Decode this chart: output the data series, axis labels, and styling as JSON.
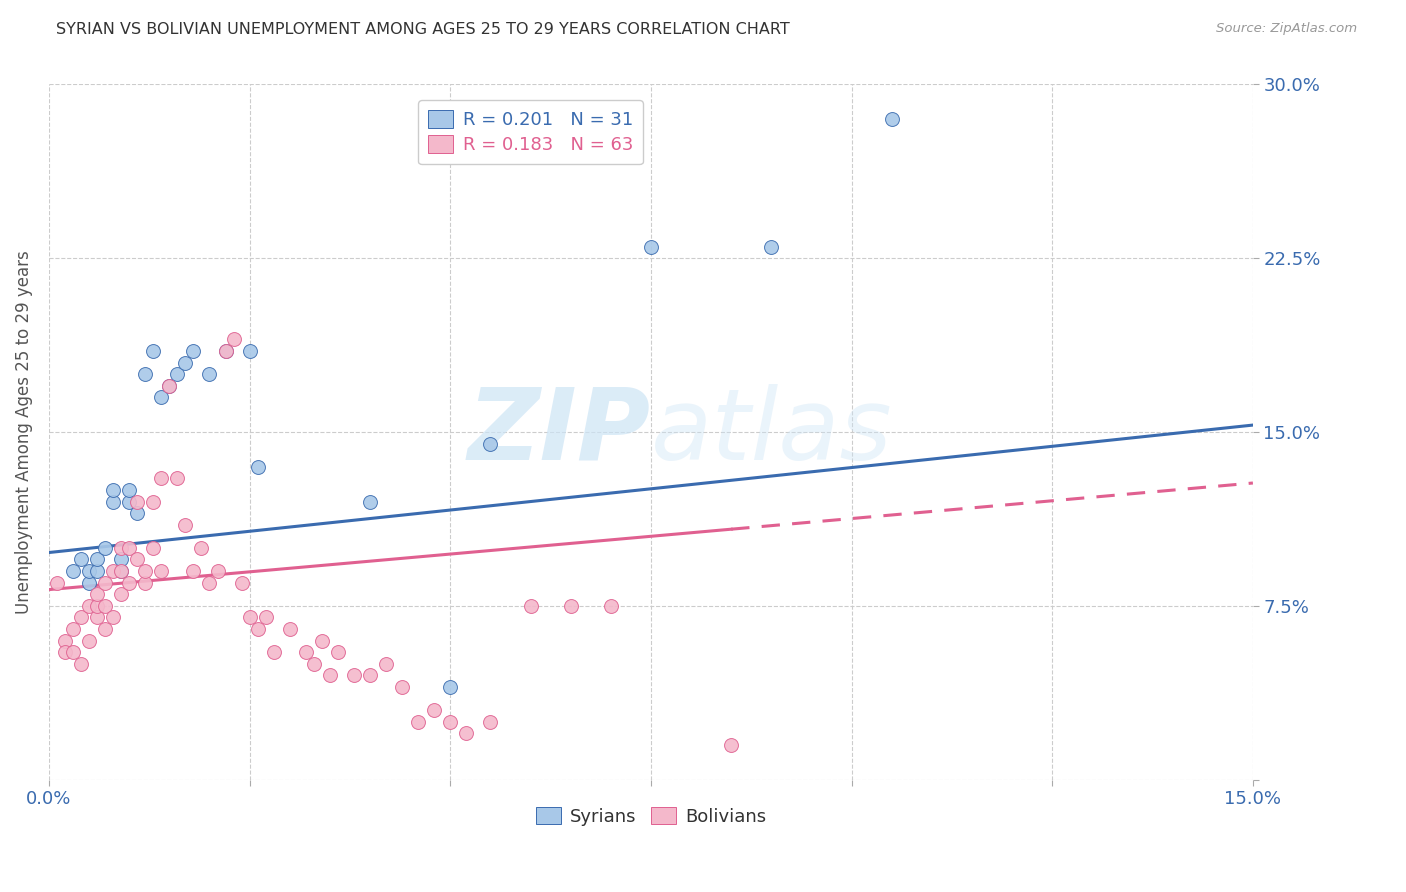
{
  "title": "SYRIAN VS BOLIVIAN UNEMPLOYMENT AMONG AGES 25 TO 29 YEARS CORRELATION CHART",
  "source": "Source: ZipAtlas.com",
  "ylabel": "Unemployment Among Ages 25 to 29 years",
  "xlim": [
    0,
    0.15
  ],
  "ylim": [
    0,
    0.3
  ],
  "xticks": [
    0.0,
    0.025,
    0.05,
    0.075,
    0.1,
    0.125,
    0.15
  ],
  "xticklabels": [
    "0.0%",
    "",
    "",
    "",
    "",
    "",
    "15.0%"
  ],
  "yticks": [
    0.0,
    0.075,
    0.15,
    0.225,
    0.3
  ],
  "yticklabels": [
    "",
    "7.5%",
    "15.0%",
    "22.5%",
    "30.0%"
  ],
  "syrians_color": "#a8c8e8",
  "bolivians_color": "#f4b8cb",
  "trend_syrian_color": "#3a6baf",
  "trend_bolivian_color": "#e06090",
  "watermark_color": "#cce4f5",
  "legend_syrian_R": "R = 0.201",
  "legend_syrian_N": "N = 31",
  "legend_bolivian_R": "R = 0.183",
  "legend_bolivian_N": "N = 63",
  "syrians_x": [
    0.003,
    0.004,
    0.005,
    0.005,
    0.006,
    0.006,
    0.007,
    0.008,
    0.008,
    0.009,
    0.009,
    0.01,
    0.01,
    0.011,
    0.012,
    0.013,
    0.014,
    0.015,
    0.016,
    0.017,
    0.018,
    0.02,
    0.022,
    0.025,
    0.026,
    0.04,
    0.05,
    0.055,
    0.075,
    0.09,
    0.105
  ],
  "syrians_y": [
    0.09,
    0.095,
    0.085,
    0.09,
    0.09,
    0.095,
    0.1,
    0.12,
    0.125,
    0.09,
    0.095,
    0.12,
    0.125,
    0.115,
    0.175,
    0.185,
    0.165,
    0.17,
    0.175,
    0.18,
    0.185,
    0.175,
    0.185,
    0.185,
    0.135,
    0.12,
    0.04,
    0.145,
    0.23,
    0.23,
    0.285
  ],
  "bolivians_x": [
    0.001,
    0.002,
    0.002,
    0.003,
    0.003,
    0.004,
    0.004,
    0.005,
    0.005,
    0.006,
    0.006,
    0.006,
    0.007,
    0.007,
    0.007,
    0.008,
    0.008,
    0.009,
    0.009,
    0.009,
    0.01,
    0.01,
    0.011,
    0.011,
    0.012,
    0.012,
    0.013,
    0.013,
    0.014,
    0.014,
    0.015,
    0.016,
    0.017,
    0.018,
    0.019,
    0.02,
    0.021,
    0.022,
    0.023,
    0.024,
    0.025,
    0.026,
    0.027,
    0.028,
    0.03,
    0.032,
    0.033,
    0.034,
    0.035,
    0.036,
    0.038,
    0.04,
    0.042,
    0.044,
    0.046,
    0.048,
    0.05,
    0.052,
    0.055,
    0.06,
    0.065,
    0.07,
    0.085
  ],
  "bolivians_y": [
    0.085,
    0.06,
    0.055,
    0.065,
    0.055,
    0.07,
    0.05,
    0.06,
    0.075,
    0.07,
    0.075,
    0.08,
    0.085,
    0.075,
    0.065,
    0.07,
    0.09,
    0.08,
    0.09,
    0.1,
    0.085,
    0.1,
    0.095,
    0.12,
    0.085,
    0.09,
    0.12,
    0.1,
    0.13,
    0.09,
    0.17,
    0.13,
    0.11,
    0.09,
    0.1,
    0.085,
    0.09,
    0.185,
    0.19,
    0.085,
    0.07,
    0.065,
    0.07,
    0.055,
    0.065,
    0.055,
    0.05,
    0.06,
    0.045,
    0.055,
    0.045,
    0.045,
    0.05,
    0.04,
    0.025,
    0.03,
    0.025,
    0.02,
    0.025,
    0.075,
    0.075,
    0.075,
    0.015
  ],
  "trend_syrian_x0": 0.0,
  "trend_syrian_y0": 0.098,
  "trend_syrian_x1": 0.15,
  "trend_syrian_y1": 0.153,
  "trend_bolivian_x0": 0.0,
  "trend_bolivian_y0": 0.082,
  "trend_bolivian_x1": 0.15,
  "trend_bolivian_y1": 0.128,
  "trend_bolivian_solid_end": 0.085
}
